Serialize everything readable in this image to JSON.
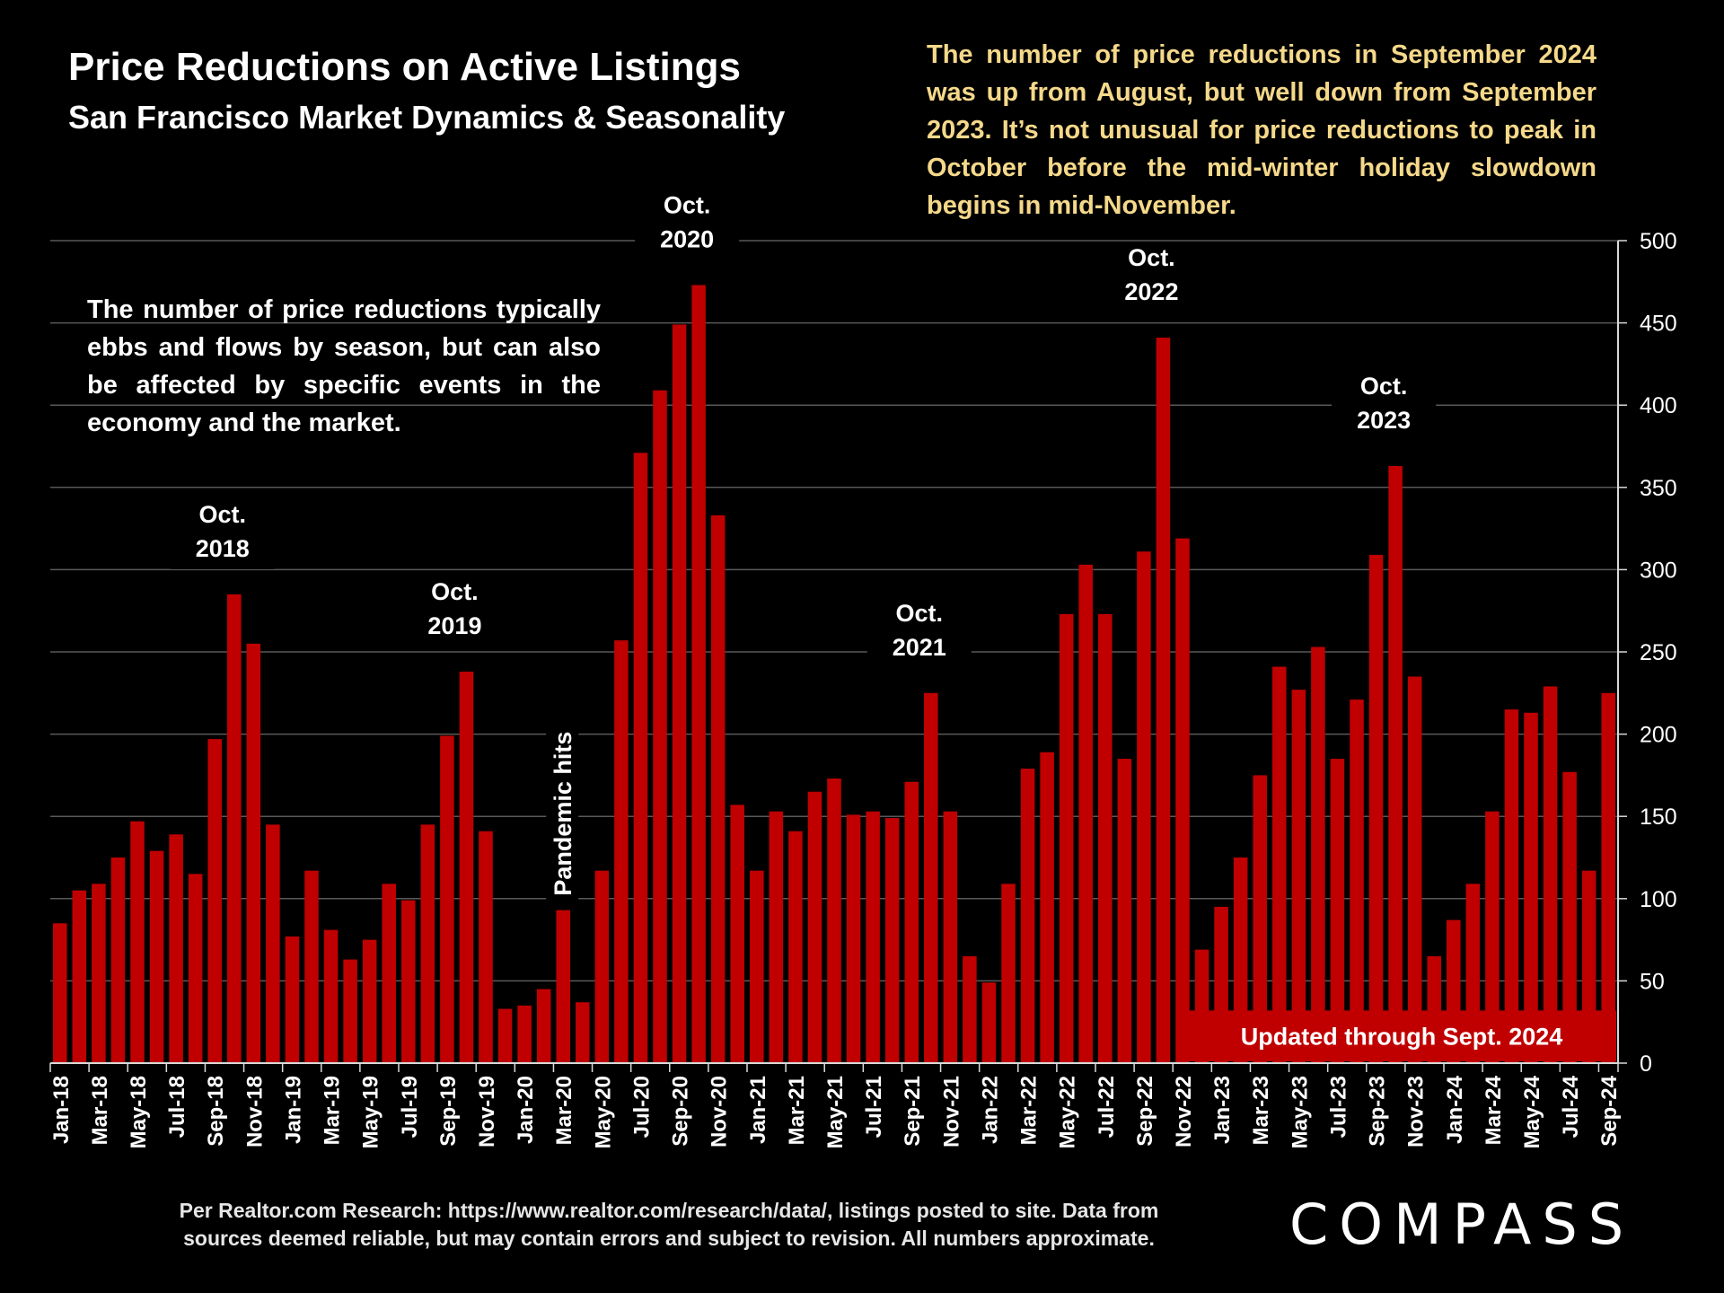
{
  "header": {
    "title": "Price Reductions on Active Listings",
    "subtitle": "San Francisco Market Dynamics & Seasonality"
  },
  "notes": {
    "top_right": "The number of price reductions in September 2024 was up from August, but well down from September 2023. It’s not unusual for price reductions to peak in October before the mid-winter holiday slowdown begins in mid-November.",
    "left": "The number of price reductions typically ebbs and flows by season, but can also be affected by specific events in the economy and the market."
  },
  "footer": {
    "source_line1": "Per Realtor.com Research: https://www.realtor.com/research/data/, listings posted to site. Data from",
    "source_line2": "sources deemed reliable, but may contain errors and subject to revision. All numbers approximate.",
    "logo": "COMPASS"
  },
  "colors": {
    "background": "#000000",
    "bar": "#c00000",
    "grid": "#595959",
    "note_accent": "#f5d98a"
  },
  "chart_data": {
    "type": "bar",
    "title": "Price Reductions on Active Listings",
    "xlabel": "",
    "ylabel": "",
    "ylim": [
      0,
      500
    ],
    "yticks": [
      0,
      50,
      100,
      150,
      200,
      250,
      300,
      350,
      400,
      450,
      500
    ],
    "y_axis_side": "right",
    "grid": true,
    "categories": [
      "Jan-18",
      "Feb-18",
      "Mar-18",
      "Apr-18",
      "May-18",
      "Jun-18",
      "Jul-18",
      "Aug-18",
      "Sep-18",
      "Oct-18",
      "Nov-18",
      "Dec-18",
      "Jan-19",
      "Feb-19",
      "Mar-19",
      "Apr-19",
      "May-19",
      "Jun-19",
      "Jul-19",
      "Aug-19",
      "Sep-19",
      "Oct-19",
      "Nov-19",
      "Dec-19",
      "Jan-20",
      "Feb-20",
      "Mar-20",
      "Apr-20",
      "May-20",
      "Jun-20",
      "Jul-20",
      "Aug-20",
      "Sep-20",
      "Oct-20",
      "Nov-20",
      "Dec-20",
      "Jan-21",
      "Feb-21",
      "Mar-21",
      "Apr-21",
      "May-21",
      "Jun-21",
      "Jul-21",
      "Aug-21",
      "Sep-21",
      "Oct-21",
      "Nov-21",
      "Dec-21",
      "Jan-22",
      "Feb-22",
      "Mar-22",
      "Apr-22",
      "May-22",
      "Jun-22",
      "Jul-22",
      "Aug-22",
      "Sep-22",
      "Oct-22",
      "Nov-22",
      "Dec-22",
      "Jan-23",
      "Feb-23",
      "Mar-23",
      "Apr-23",
      "May-23",
      "Jun-23",
      "Jul-23",
      "Aug-23",
      "Sep-23",
      "Oct-23",
      "Nov-23",
      "Dec-23",
      "Jan-24",
      "Feb-24",
      "Mar-24",
      "Apr-24",
      "May-24",
      "Jun-24",
      "Jul-24",
      "Aug-24",
      "Sep-24"
    ],
    "labeled_categories": [
      "Jan-18",
      "Mar-18",
      "May-18",
      "Jul-18",
      "Sep-18",
      "Nov-18",
      "Jan-19",
      "Mar-19",
      "May-19",
      "Jul-19",
      "Sep-19",
      "Nov-19",
      "Jan-20",
      "Mar-20",
      "May-20",
      "Jul-20",
      "Sep-20",
      "Nov-20",
      "Jan-21",
      "Mar-21",
      "May-21",
      "Jul-21",
      "Sep-21",
      "Nov-21",
      "Jan-22",
      "Mar-22",
      "May-22",
      "Jul-22",
      "Sep-22",
      "Nov-22",
      "Jan-23",
      "Mar-23",
      "May-23",
      "Jul-23",
      "Sep-23",
      "Nov-23",
      "Jan-24",
      "Mar-24",
      "May-24",
      "Jul-24",
      "Sep-24"
    ],
    "values": [
      85,
      105,
      109,
      125,
      147,
      129,
      139,
      115,
      197,
      285,
      255,
      145,
      77,
      117,
      81,
      63,
      75,
      109,
      99,
      145,
      199,
      238,
      141,
      33,
      35,
      45,
      93,
      37,
      117,
      257,
      371,
      409,
      449,
      473,
      333,
      157,
      117,
      153,
      141,
      165,
      173,
      151,
      153,
      149,
      171,
      225,
      153,
      65,
      49,
      109,
      179,
      189,
      273,
      303,
      273,
      185,
      311,
      441,
      319,
      69,
      95,
      125,
      175,
      241,
      227,
      253,
      185,
      221,
      309,
      363,
      235,
      65,
      87,
      109,
      153,
      215,
      213,
      229,
      177,
      117,
      225
    ],
    "annotations": [
      {
        "category": "Oct-18",
        "line1": "Oct.",
        "line2": "2018"
      },
      {
        "category": "Oct-19",
        "line1": "Oct.",
        "line2": "2019"
      },
      {
        "category": "Oct-20",
        "line1": "Oct.",
        "line2": "2020"
      },
      {
        "category": "Oct-21",
        "line1": "Oct.",
        "line2": "2021"
      },
      {
        "category": "Oct-22",
        "line1": "Oct.",
        "line2": "2022"
      },
      {
        "category": "Oct-23",
        "line1": "Oct.",
        "line2": "2023"
      }
    ],
    "event_label": {
      "category": "Mar-20",
      "text": "Pandemic hits"
    },
    "update_banner": "Updated through Sept. 2024"
  }
}
